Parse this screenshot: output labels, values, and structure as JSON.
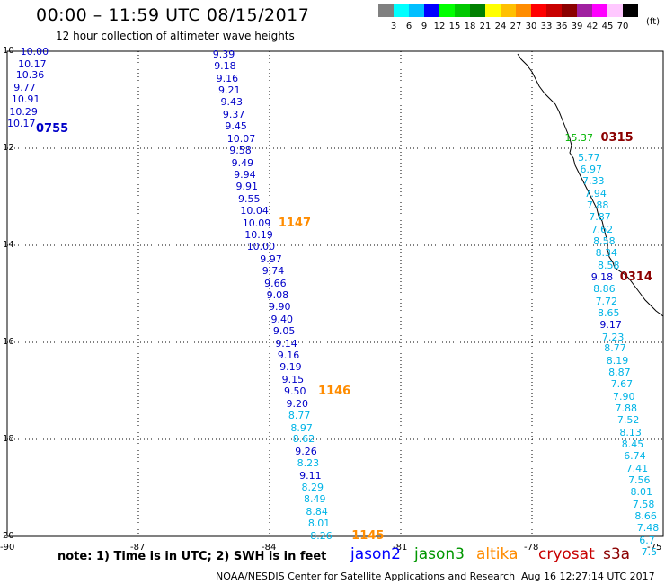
{
  "title": "00:00 – 11:59 UTC 08/15/2017",
  "subtitle": "12 hour collection of altimeter wave heights",
  "legend": {
    "units": "(ft)",
    "levels": [
      "3",
      "6",
      "9",
      "12",
      "15",
      "18",
      "21",
      "24",
      "27",
      "30",
      "33",
      "36",
      "39",
      "42",
      "45",
      "70"
    ],
    "colors": [
      "#808080",
      "#00ffff",
      "#00bfff",
      "#0000ff",
      "#00ff00",
      "#00c800",
      "#008000",
      "#ffff00",
      "#ffc000",
      "#ff8c00",
      "#ff0000",
      "#c80000",
      "#8b0000",
      "#a020a0",
      "#ff00ff",
      "#ffc8ff",
      "#000000"
    ]
  },
  "axes": {
    "lat_labels": [
      "10",
      "12",
      "14",
      "16",
      "18",
      "20"
    ],
    "lon_labels": [
      "-90",
      "-87",
      "-84",
      "-81",
      "-78",
      "-75"
    ]
  },
  "tracks": {
    "track_0755": {
      "time": "0755",
      "time_color": "#0000c8",
      "points": [
        {
          "v": "10.00",
          "lat": 10.0,
          "lon": -89.7,
          "c": "#0000c8"
        },
        {
          "v": "10.17",
          "lat": 10.25,
          "lon": -89.75,
          "c": "#0000c8"
        },
        {
          "v": "10.36",
          "lat": 10.49,
          "lon": -89.8,
          "c": "#0000c8"
        },
        {
          "v": "9.77",
          "lat": 10.74,
          "lon": -89.85,
          "c": "#0000c8"
        },
        {
          "v": "10.91",
          "lat": 10.99,
          "lon": -89.9,
          "c": "#0000c8"
        },
        {
          "v": "10.29",
          "lat": 11.24,
          "lon": -89.95,
          "c": "#0000c8"
        },
        {
          "v": "10.17",
          "lat": 11.48,
          "lon": -90.0,
          "c": "#0000c8"
        }
      ]
    },
    "track_1147": {
      "time": "1147",
      "time_color": "#ff8c00",
      "points": [
        {
          "v": "9.39",
          "lat": 10.05,
          "lon": -85.3,
          "c": "#0000c8"
        },
        {
          "v": "9.18",
          "lat": 10.3,
          "lon": -85.27,
          "c": "#0000c8"
        },
        {
          "v": "9.16",
          "lat": 10.55,
          "lon": -85.22,
          "c": "#0000c8"
        },
        {
          "v": "9.21",
          "lat": 10.8,
          "lon": -85.17,
          "c": "#0000c8"
        },
        {
          "v": "9.43",
          "lat": 11.04,
          "lon": -85.12,
          "c": "#0000c8"
        },
        {
          "v": "9.37",
          "lat": 11.29,
          "lon": -85.07,
          "c": "#0000c8"
        },
        {
          "v": "9.45",
          "lat": 11.54,
          "lon": -85.02,
          "c": "#0000c8"
        },
        {
          "v": "10.07",
          "lat": 11.79,
          "lon": -84.97,
          "c": "#0000c8"
        },
        {
          "v": "9.58",
          "lat": 12.04,
          "lon": -84.92,
          "c": "#0000c8"
        },
        {
          "v": "9.49",
          "lat": 12.29,
          "lon": -84.87,
          "c": "#0000c8"
        },
        {
          "v": "9.94",
          "lat": 12.53,
          "lon": -84.82,
          "c": "#0000c8"
        },
        {
          "v": "9.91",
          "lat": 12.78,
          "lon": -84.77,
          "c": "#0000c8"
        },
        {
          "v": "9.55",
          "lat": 13.03,
          "lon": -84.72,
          "c": "#0000c8"
        },
        {
          "v": "10.04",
          "lat": 13.28,
          "lon": -84.67,
          "c": "#0000c8"
        },
        {
          "v": "10.09",
          "lat": 13.53,
          "lon": -84.62,
          "c": "#0000c8"
        },
        {
          "v": "10.19",
          "lat": 13.77,
          "lon": -84.57,
          "c": "#0000c8"
        },
        {
          "v": "10.00",
          "lat": 14.01,
          "lon": -84.52,
          "c": "#0000c8"
        }
      ]
    },
    "track_1146": {
      "time": "1146",
      "time_color": "#ff8c00",
      "points": [
        {
          "v": "9.97",
          "lat": 14.27,
          "lon": -84.22,
          "c": "#0000c8"
        },
        {
          "v": "9.74",
          "lat": 14.52,
          "lon": -84.17,
          "c": "#0000c8"
        },
        {
          "v": "9.66",
          "lat": 14.77,
          "lon": -84.12,
          "c": "#0000c8"
        },
        {
          "v": "9.08",
          "lat": 15.01,
          "lon": -84.07,
          "c": "#0000c8"
        },
        {
          "v": "9.90",
          "lat": 15.26,
          "lon": -84.02,
          "c": "#0000c8"
        },
        {
          "v": "9.40",
          "lat": 15.51,
          "lon": -83.97,
          "c": "#0000c8"
        },
        {
          "v": "9.05",
          "lat": 15.76,
          "lon": -83.92,
          "c": "#0000c8"
        },
        {
          "v": "9.14",
          "lat": 16.01,
          "lon": -83.87,
          "c": "#0000c8"
        },
        {
          "v": "9.16",
          "lat": 16.26,
          "lon": -83.82,
          "c": "#0000c8"
        },
        {
          "v": "9.19",
          "lat": 16.5,
          "lon": -83.77,
          "c": "#0000c8"
        },
        {
          "v": "9.15",
          "lat": 16.75,
          "lon": -83.72,
          "c": "#0000c8"
        },
        {
          "v": "9.50",
          "lat": 17.0,
          "lon": -83.67,
          "c": "#0000c8"
        },
        {
          "v": "9.20",
          "lat": 17.25,
          "lon": -83.62,
          "c": "#0000c8"
        },
        {
          "v": "8.77",
          "lat": 17.5,
          "lon": -83.57,
          "c": "#00b4e6"
        },
        {
          "v": "8.97",
          "lat": 17.75,
          "lon": -83.52,
          "c": "#00b4e6"
        },
        {
          "v": "8.62",
          "lat": 17.99,
          "lon": -83.47,
          "c": "#00b4e6"
        }
      ]
    },
    "track_1145": {
      "time": "1145",
      "time_color": "#ff8c00",
      "points": [
        {
          "v": "9.26",
          "lat": 18.24,
          "lon": -83.42,
          "c": "#0000c8"
        },
        {
          "v": "8.23",
          "lat": 18.49,
          "lon": -83.37,
          "c": "#00b4e6"
        },
        {
          "v": "9.11",
          "lat": 18.74,
          "lon": -83.32,
          "c": "#0000c8"
        },
        {
          "v": "8.29",
          "lat": 18.99,
          "lon": -83.27,
          "c": "#00b4e6"
        },
        {
          "v": "8.49",
          "lat": 19.23,
          "lon": -83.22,
          "c": "#00b4e6"
        },
        {
          "v": "8.84",
          "lat": 19.48,
          "lon": -83.17,
          "c": "#00b4e6"
        },
        {
          "v": "8.01",
          "lat": 19.73,
          "lon": -83.12,
          "c": "#00b4e6"
        },
        {
          "v": "8.26",
          "lat": 19.98,
          "lon": -83.07,
          "c": "#00b4e6"
        }
      ]
    },
    "track_0315": {
      "time": "0315",
      "time_color": "#8b0000",
      "points": [
        {
          "v": "15.37",
          "lat": 11.78,
          "lon": -77.25,
          "c": "#00b400"
        }
      ]
    },
    "track_0314": {
      "time": "0314",
      "time_color": "#8b0000",
      "points": [
        {
          "v": "5.77",
          "lat": 12.18,
          "lon": -76.95,
          "c": "#00b4e6"
        },
        {
          "v": "6.97",
          "lat": 12.42,
          "lon": -76.9,
          "c": "#00b4e6"
        },
        {
          "v": "7.33",
          "lat": 12.67,
          "lon": -76.85,
          "c": "#00b4e6"
        },
        {
          "v": "7.94",
          "lat": 12.92,
          "lon": -76.8,
          "c": "#00b4e6"
        },
        {
          "v": "7.88",
          "lat": 13.17,
          "lon": -76.75,
          "c": "#00b4e6"
        },
        {
          "v": "7.87",
          "lat": 13.41,
          "lon": -76.7,
          "c": "#00b4e6"
        },
        {
          "v": "7.62",
          "lat": 13.66,
          "lon": -76.65,
          "c": "#00b4e6"
        },
        {
          "v": "8.58",
          "lat": 13.91,
          "lon": -76.6,
          "c": "#00b4e6"
        },
        {
          "v": "8.34",
          "lat": 14.15,
          "lon": -76.55,
          "c": "#00b4e6"
        },
        {
          "v": "8.58",
          "lat": 14.4,
          "lon": -76.5,
          "c": "#00b4e6"
        },
        {
          "v": "9.18",
          "lat": 14.64,
          "lon": -76.65,
          "c": "#0000c8"
        },
        {
          "v": "8.86",
          "lat": 14.89,
          "lon": -76.6,
          "c": "#00b4e6"
        },
        {
          "v": "7.72",
          "lat": 15.14,
          "lon": -76.55,
          "c": "#00b4e6"
        },
        {
          "v": "8.65",
          "lat": 15.38,
          "lon": -76.5,
          "c": "#00b4e6"
        },
        {
          "v": "9.17",
          "lat": 15.63,
          "lon": -76.45,
          "c": "#0000c8"
        },
        {
          "v": "7.23",
          "lat": 15.88,
          "lon": -76.4,
          "c": "#00b4e6"
        },
        {
          "v": "8.77",
          "lat": 16.12,
          "lon": -76.35,
          "c": "#00b4e6"
        },
        {
          "v": "8.19",
          "lat": 16.37,
          "lon": -76.3,
          "c": "#00b4e6"
        },
        {
          "v": "8.87",
          "lat": 16.62,
          "lon": -76.25,
          "c": "#00b4e6"
        },
        {
          "v": "7.67",
          "lat": 16.86,
          "lon": -76.2,
          "c": "#00b4e6"
        },
        {
          "v": "7.90",
          "lat": 17.11,
          "lon": -76.15,
          "c": "#00b4e6"
        },
        {
          "v": "7.88",
          "lat": 17.36,
          "lon": -76.1,
          "c": "#00b4e6"
        },
        {
          "v": "7.52",
          "lat": 17.6,
          "lon": -76.05,
          "c": "#00b4e6"
        },
        {
          "v": "8.13",
          "lat": 17.85,
          "lon": -76.0,
          "c": "#00b4e6"
        },
        {
          "v": "8.45",
          "lat": 18.1,
          "lon": -75.95,
          "c": "#00b4e6"
        },
        {
          "v": "6.74",
          "lat": 18.34,
          "lon": -75.9,
          "c": "#00b4e6"
        },
        {
          "v": "7.41",
          "lat": 18.59,
          "lon": -75.85,
          "c": "#00b4e6"
        },
        {
          "v": "7.56",
          "lat": 18.84,
          "lon": -75.8,
          "c": "#00b4e6"
        },
        {
          "v": "8.01",
          "lat": 19.08,
          "lon": -75.75,
          "c": "#00b4e6"
        },
        {
          "v": "7.58",
          "lat": 19.33,
          "lon": -75.7,
          "c": "#00b4e6"
        },
        {
          "v": "8.66",
          "lat": 19.58,
          "lon": -75.65,
          "c": "#00b4e6"
        },
        {
          "v": "7.48",
          "lat": 19.82,
          "lon": -75.6,
          "c": "#00b4e6"
        },
        {
          "v": "6.7",
          "lat": 20.07,
          "lon": -75.55,
          "c": "#00b4e6"
        },
        {
          "v": "7.5",
          "lat": 20.32,
          "lon": -75.5,
          "c": "#00b4e6"
        }
      ]
    }
  },
  "note": "note:  1) Time is in UTC;  2) SWH is in feet",
  "satellites": [
    {
      "name": "jason2",
      "color": "#0000ff"
    },
    {
      "name": "jason3",
      "color": "#009600"
    },
    {
      "name": "altika",
      "color": "#ff8c00"
    },
    {
      "name": "cryosat",
      "color": "#c80000"
    },
    {
      "name": "s3a",
      "color": "#8b0000"
    }
  ],
  "credit": "NOAA/NESDIS Center for Satellite Applications and Research",
  "timestamp": "Aug 16 12:27:14 UTC 2017"
}
